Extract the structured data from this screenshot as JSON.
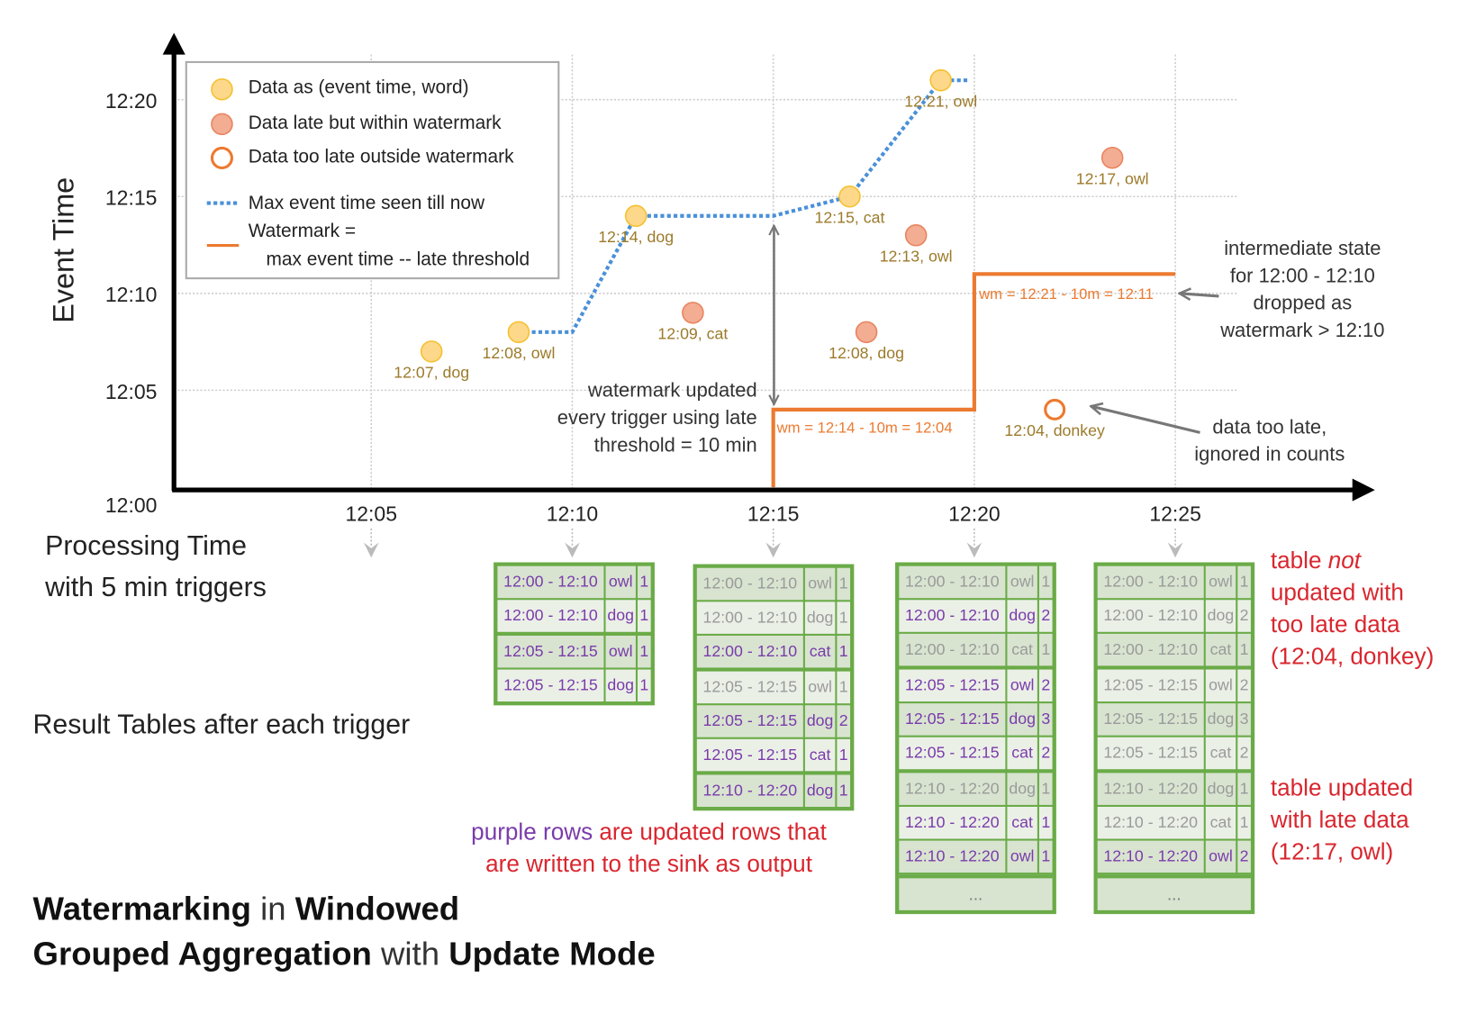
{
  "chart": {
    "y_axis_label": "Event Time",
    "x_axis_label_lines": [
      "Processing Time",
      "with 5 min triggers"
    ],
    "y_ticks": [
      "12:00",
      "12:05",
      "12:10",
      "12:15",
      "12:20"
    ],
    "x_ticks": [
      "12:05",
      "12:10",
      "12:15",
      "12:20",
      "12:25"
    ],
    "grid": true,
    "colors": {
      "on_time": "#fdd88a",
      "late_within": "#f2ad93",
      "too_late": "#ec7a30",
      "max_event_line": "#4a90d9",
      "watermark_line": "#ec7a30",
      "point_label": "#9c7a2a"
    },
    "legend": {
      "items": [
        {
          "kind": "on_time",
          "label": "Data as (event time, word)"
        },
        {
          "kind": "late_within",
          "label": "Data late but within watermark"
        },
        {
          "kind": "too_late",
          "label": "Data too late outside watermark"
        },
        {
          "kind": "max_event_line",
          "label": "Max event time seen till now"
        },
        {
          "kind": "watermark_line",
          "label": "Watermark =",
          "label2": "max event time -- late threshold"
        }
      ]
    },
    "points": [
      {
        "processing": "12:06:30",
        "event": "12:07",
        "word": "dog",
        "label": "12:07, dog",
        "kind": "on_time"
      },
      {
        "processing": "12:08:40",
        "event": "12:08",
        "word": "owl",
        "label": "12:08, owl",
        "kind": "on_time"
      },
      {
        "processing": "12:11:35",
        "event": "12:14",
        "word": "dog",
        "label": "12:14, dog",
        "kind": "on_time"
      },
      {
        "processing": "12:13:00",
        "event": "12:09",
        "word": "cat",
        "label": "12:09, cat",
        "kind": "late_within"
      },
      {
        "processing": "12:16:54",
        "event": "12:15",
        "word": "cat",
        "label": "12:15, cat",
        "kind": "on_time"
      },
      {
        "processing": "12:17:19",
        "event": "12:08",
        "word": "dog",
        "label": "12:08, dog",
        "kind": "late_within"
      },
      {
        "processing": "12:18:33",
        "event": "12:13",
        "word": "owl",
        "label": "12:13, owl",
        "kind": "late_within"
      },
      {
        "processing": "12:19:10",
        "event": "12:21",
        "word": "owl",
        "label": "12:21, owl",
        "kind": "on_time"
      },
      {
        "processing": "12:22:00",
        "event": "12:04",
        "word": "donkey",
        "label": "12:04, donkey",
        "kind": "too_late"
      },
      {
        "processing": "12:23:26",
        "event": "12:17",
        "word": "owl",
        "label": "12:17, owl",
        "kind": "late_within"
      }
    ],
    "max_event_line": [
      [
        "12:08:40",
        "12:08"
      ],
      [
        "12:10:00",
        "12:08"
      ],
      [
        "12:11:35",
        "12:14"
      ],
      [
        "12:15:00",
        "12:14"
      ],
      [
        "12:16:54",
        "12:15"
      ],
      [
        "12:19:10",
        "12:21"
      ],
      [
        "12:19:50",
        "12:21"
      ]
    ],
    "watermark_line": [
      [
        "12:15:00",
        "12:00"
      ],
      [
        "12:15:00",
        "12:04"
      ],
      [
        "12:20:00",
        "12:04"
      ],
      [
        "12:20:00",
        "12:11"
      ],
      [
        "12:25:00",
        "12:11"
      ]
    ],
    "watermark_labels": [
      "wm = 12:14 - 10m = 12:04",
      "wm = 12:21 - 10m = 12:11"
    ]
  },
  "annotations": {
    "watermark_updated": [
      "watermark updated",
      "every trigger using late",
      "threshold = 10 min"
    ],
    "state_dropped": [
      "intermediate state",
      "for 12:00 - 12:10",
      "dropped as",
      "watermark > 12:10"
    ],
    "too_late": [
      "data too late,",
      "ignored in counts"
    ]
  },
  "result_tables_label": "Result Tables after each trigger",
  "result_tables": [
    {
      "trigger": "12:10",
      "rows": [
        {
          "window": "12:00 - 12:10",
          "word": "owl",
          "count": "1",
          "updated": true
        },
        {
          "window": "12:00 - 12:10",
          "word": "dog",
          "count": "1",
          "updated": true
        },
        {
          "window": "12:05 - 12:15",
          "word": "owl",
          "count": "1",
          "updated": true
        },
        {
          "window": "12:05 - 12:15",
          "word": "dog",
          "count": "1",
          "updated": true
        }
      ]
    },
    {
      "trigger": "12:15",
      "rows": [
        {
          "window": "12:00 - 12:10",
          "word": "owl",
          "count": "1",
          "updated": false
        },
        {
          "window": "12:00 - 12:10",
          "word": "dog",
          "count": "1",
          "updated": false
        },
        {
          "window": "12:00 - 12:10",
          "word": "cat",
          "count": "1",
          "updated": true
        },
        {
          "window": "12:05 - 12:15",
          "word": "owl",
          "count": "1",
          "updated": false
        },
        {
          "window": "12:05 - 12:15",
          "word": "dog",
          "count": "2",
          "updated": true
        },
        {
          "window": "12:05 - 12:15",
          "word": "cat",
          "count": "1",
          "updated": true
        },
        {
          "window": "12:10 - 12:20",
          "word": "dog",
          "count": "1",
          "updated": true
        }
      ]
    },
    {
      "trigger": "12:20",
      "ellipsis": "...",
      "rows": [
        {
          "window": "12:00 - 12:10",
          "word": "owl",
          "count": "1",
          "updated": false
        },
        {
          "window": "12:00 - 12:10",
          "word": "dog",
          "count": "2",
          "updated": true
        },
        {
          "window": "12:00 - 12:10",
          "word": "cat",
          "count": "1",
          "updated": false
        },
        {
          "window": "12:05 - 12:15",
          "word": "owl",
          "count": "2",
          "updated": true
        },
        {
          "window": "12:05 - 12:15",
          "word": "dog",
          "count": "3",
          "updated": true
        },
        {
          "window": "12:05 - 12:15",
          "word": "cat",
          "count": "2",
          "updated": true
        },
        {
          "window": "12:10 - 12:20",
          "word": "dog",
          "count": "1",
          "updated": false
        },
        {
          "window": "12:10 - 12:20",
          "word": "cat",
          "count": "1",
          "updated": true
        },
        {
          "window": "12:10 - 12:20",
          "word": "owl",
          "count": "1",
          "updated": true
        }
      ]
    },
    {
      "trigger": "12:25",
      "ellipsis": "...",
      "rows": [
        {
          "window": "12:00 - 12:10",
          "word": "owl",
          "count": "1",
          "updated": false
        },
        {
          "window": "12:00 - 12:10",
          "word": "dog",
          "count": "2",
          "updated": false
        },
        {
          "window": "12:00 - 12:10",
          "word": "cat",
          "count": "1",
          "updated": false
        },
        {
          "window": "12:05 - 12:15",
          "word": "owl",
          "count": "2",
          "updated": false
        },
        {
          "window": "12:05 - 12:15",
          "word": "dog",
          "count": "3",
          "updated": false
        },
        {
          "window": "12:05 - 12:15",
          "word": "cat",
          "count": "2",
          "updated": false
        },
        {
          "window": "12:10 - 12:20",
          "word": "dog",
          "count": "1",
          "updated": false
        },
        {
          "window": "12:10 - 12:20",
          "word": "cat",
          "count": "1",
          "updated": false
        },
        {
          "window": "12:10 - 12:20",
          "word": "owl",
          "count": "2",
          "updated": true
        }
      ]
    }
  ],
  "notes": {
    "purple_rows": {
      "highlight": "purple rows",
      "rest": " are updated rows that",
      "line2": "are written to the sink as output"
    },
    "not_updated": {
      "pre": "table ",
      "emph": "not",
      "line2": "updated with",
      "line3": "too late data",
      "line4": "(12:04, donkey)"
    },
    "updated": [
      "table updated",
      "with late data",
      "(12:17, owl)"
    ]
  },
  "title": {
    "line1": [
      {
        "text": "Watermarking",
        "bold": true
      },
      {
        "text": " in ",
        "bold": false
      },
      {
        "text": "Windowed",
        "bold": true
      }
    ],
    "line2": [
      {
        "text": "Grouped Aggregation",
        "bold": true
      },
      {
        "text": " with ",
        "bold": false
      },
      {
        "text": "Update Mode",
        "bold": true
      }
    ]
  }
}
